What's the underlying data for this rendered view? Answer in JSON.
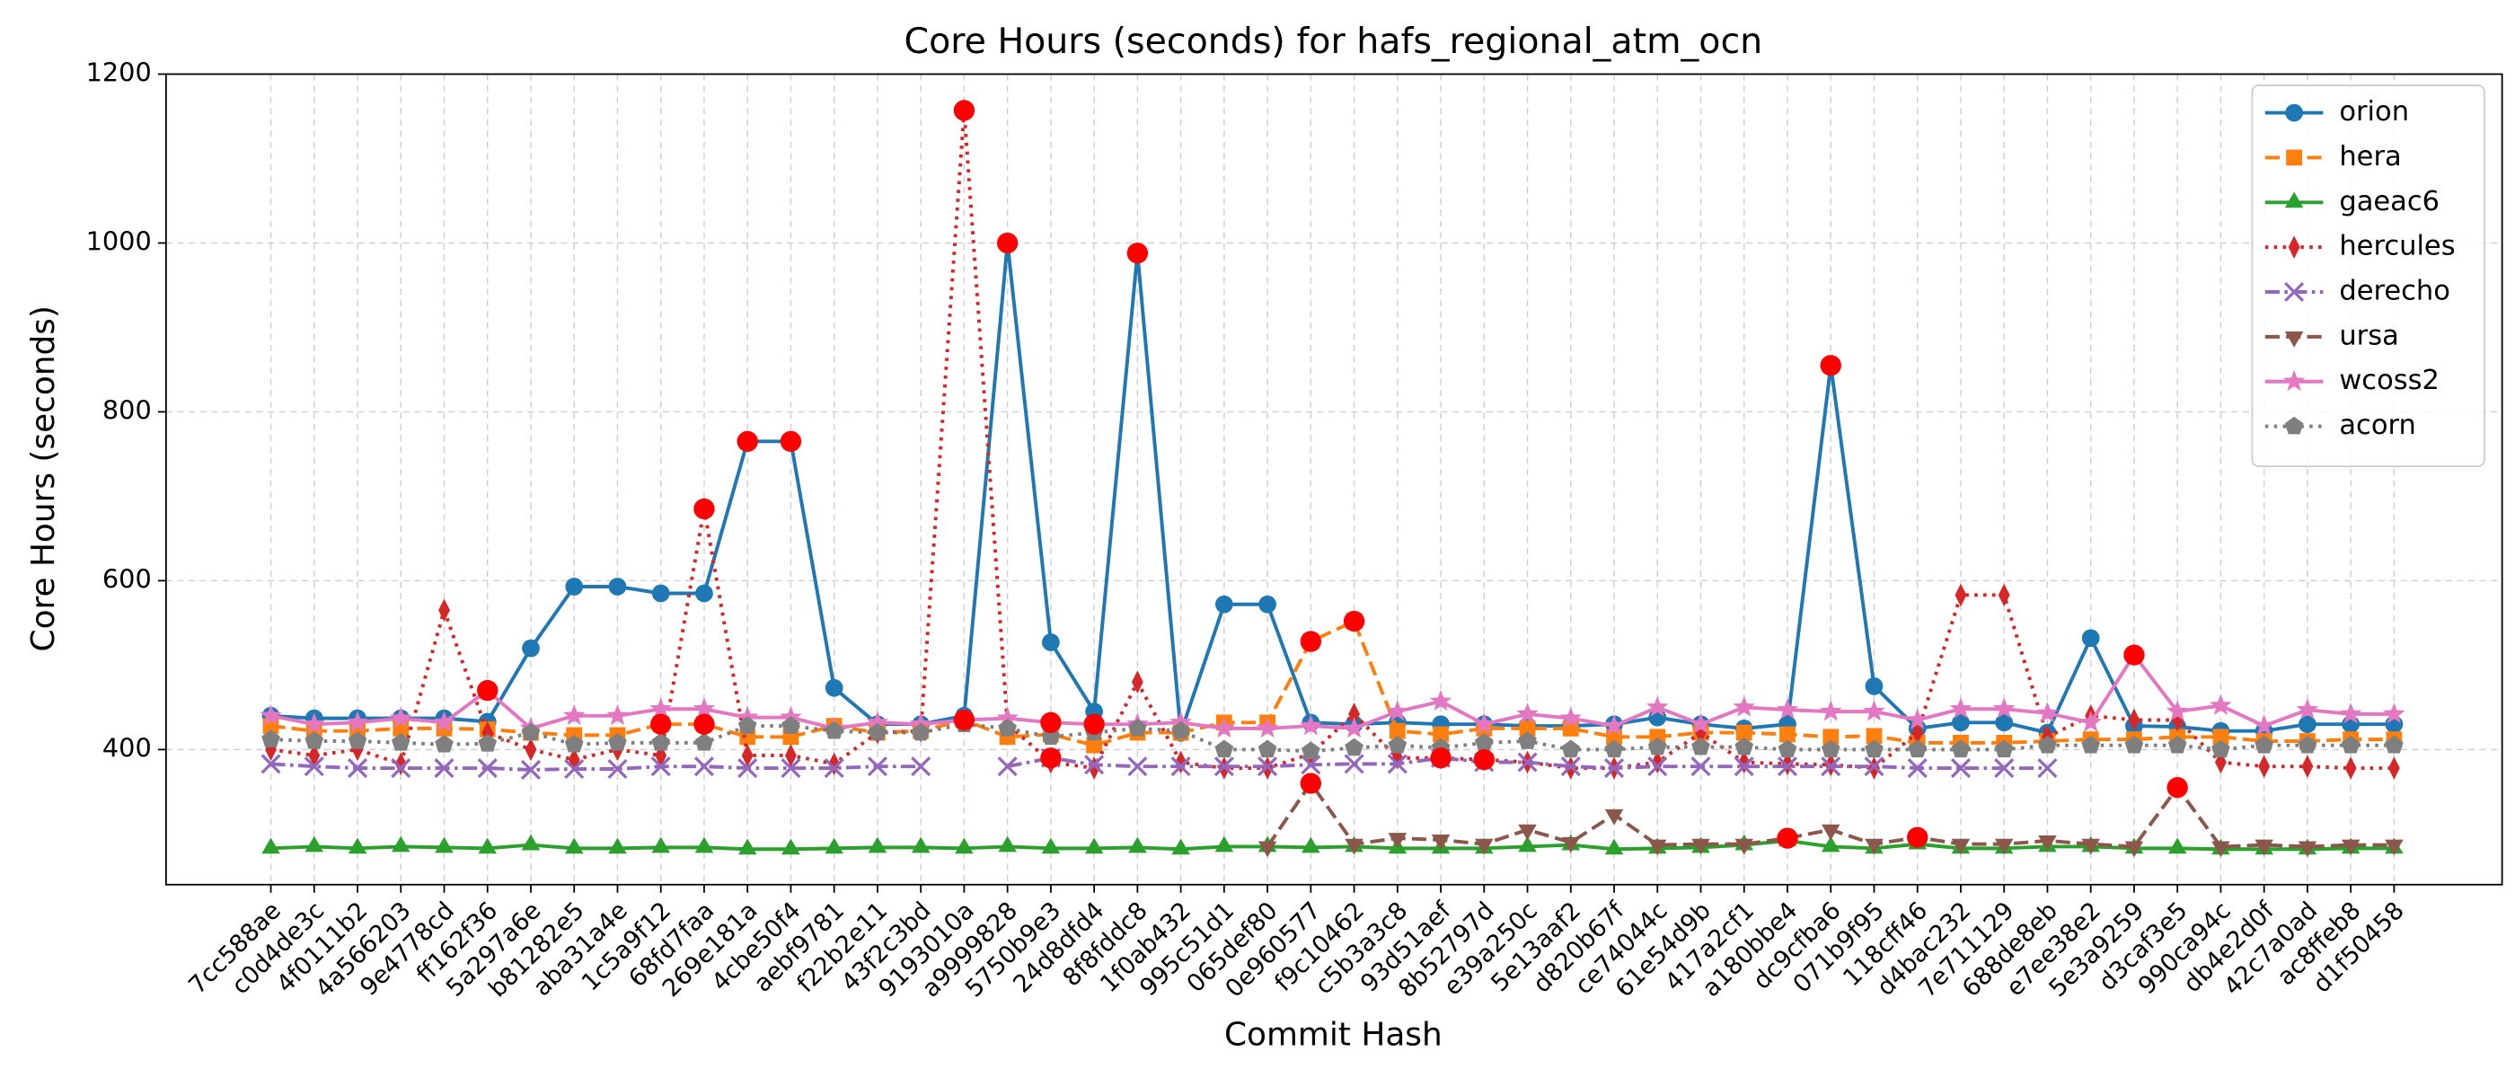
{
  "chart_data": {
    "type": "line",
    "title": "Core Hours (seconds) for hafs_regional_atm_ocn",
    "x_label": "Commit Hash",
    "y_label": "Core Hours (seconds)",
    "categories": [
      "7cc588ae",
      "c0d4de3c",
      "4f0111b2",
      "4a566203",
      "9e4778cd",
      "ff162f36",
      "5a297a6e",
      "b81282e5",
      "aba31a4e",
      "1c5a9f12",
      "68fd7faa",
      "269e181a",
      "4cbe50f4",
      "aebf9781",
      "f22b2e11",
      "43f2c3bd",
      "9193010a",
      "a9999828",
      "5750b9e3",
      "24d8dfd4",
      "8f8fddc8",
      "1f0ab432",
      "995c51d1",
      "065def80",
      "0e960577",
      "f9c10462",
      "c5b3a3c8",
      "93d51aef",
      "8b52797d",
      "e39a250c",
      "5e13aaf2",
      "d820b67f",
      "ce74044c",
      "61e54d9b",
      "417a2cf1",
      "a180bbe4",
      "dc9cfba6",
      "071b9f95",
      "118cff46",
      "d4bac232",
      "7e711129",
      "688de8eb",
      "e7ee38e2",
      "5e3a9259",
      "d3caf3e5",
      "990ca94c",
      "db4e2d0f",
      "42c7a0ad",
      "ac8ffeb8",
      "d1f50458"
    ],
    "ylim": [
      240,
      1200
    ],
    "yticks": [
      400,
      600,
      800,
      1000,
      1200
    ],
    "grid": true,
    "legend": "upper right",
    "outlier_color": "#ff0000",
    "series": [
      {
        "name": "orion",
        "color": "#1f77b4",
        "linestyle": "solid",
        "marker": "circle",
        "values": [
          440,
          437,
          437,
          437,
          437,
          433,
          520,
          593,
          593,
          585,
          585,
          765,
          765,
          473,
          430,
          430,
          440,
          1000,
          527,
          445,
          988,
          420,
          572,
          572,
          432,
          430,
          432,
          430,
          430,
          428,
          428,
          430,
          438,
          430,
          425,
          430,
          855,
          475,
          425,
          432,
          432,
          420,
          532,
          428,
          427,
          422,
          422,
          430,
          430,
          430
        ],
        "outliers": [
          "269e181a",
          "4cbe50f4",
          "a9999828",
          "8f8fddc8",
          "dc9cfba6"
        ]
      },
      {
        "name": "hera",
        "color": "#ff7f0e",
        "linestyle": "dashed",
        "marker": "square",
        "values": [
          428,
          422,
          422,
          425,
          425,
          424,
          420,
          417,
          417,
          430,
          430,
          415,
          415,
          428,
          420,
          422,
          435,
          415,
          418,
          405,
          420,
          420,
          432,
          432,
          528,
          552,
          422,
          418,
          425,
          425,
          425,
          415,
          415,
          420,
          420,
          418,
          415,
          416,
          408,
          408,
          408,
          410,
          412,
          412,
          415,
          415,
          410,
          410,
          412,
          412
        ],
        "outliers": [
          "1c5a9f12",
          "68fd7faa",
          "9193010a",
          "0e960577",
          "f9c10462"
        ]
      },
      {
        "name": "gaeac6",
        "color": "#2ca02c",
        "linestyle": "solid",
        "marker": "triangle-up",
        "values": [
          283,
          285,
          283,
          285,
          284,
          283,
          287,
          283,
          283,
          284,
          284,
          282,
          282,
          283,
          284,
          284,
          283,
          285,
          283,
          283,
          284,
          282,
          285,
          285,
          284,
          285,
          283,
          283,
          283,
          285,
          287,
          282,
          283,
          284,
          287,
          292,
          285,
          283,
          288,
          283,
          283,
          285,
          285,
          283,
          283,
          282,
          282,
          282,
          283,
          283
        ],
        "outliers": []
      },
      {
        "name": "hercules",
        "color": "#d62728",
        "linestyle": "dotted",
        "marker": "thin-diamond",
        "values": [
          400,
          393,
          400,
          383,
          565,
          420,
          400,
          388,
          400,
          393,
          685,
          393,
          393,
          383,
          420,
          422,
          1157,
          430,
          385,
          378,
          480,
          385,
          378,
          378,
          395,
          442,
          390,
          390,
          388,
          385,
          378,
          378,
          385,
          420,
          385,
          383,
          382,
          378,
          420,
          583,
          583,
          415,
          440,
          435,
          435,
          385,
          380,
          380,
          378,
          378
        ],
        "outliers": [
          "68fd7faa",
          "9193010a",
          "8b52797d"
        ]
      },
      {
        "name": "derecho",
        "color": "#9467bd",
        "linestyle": "dashdot",
        "marker": "x",
        "values": [
          383,
          380,
          378,
          378,
          378,
          378,
          376,
          377,
          377,
          380,
          380,
          378,
          378,
          378,
          380,
          380,
          null,
          380,
          390,
          382,
          380,
          380,
          380,
          380,
          382,
          383,
          383,
          390,
          385,
          385,
          380,
          378,
          380,
          380,
          380,
          380,
          380,
          380,
          378,
          378,
          378,
          378,
          null,
          null,
          null,
          null,
          null,
          null,
          null,
          null
        ],
        "outliers": [
          "5750b9e3",
          "93d51aef"
        ]
      },
      {
        "name": "ursa",
        "color": "#8c564b",
        "linestyle": "dashed",
        "marker": "triangle-down",
        "values": [
          null,
          null,
          null,
          null,
          null,
          null,
          null,
          null,
          null,
          null,
          null,
          null,
          null,
          null,
          null,
          null,
          null,
          null,
          null,
          null,
          null,
          null,
          null,
          285,
          360,
          288,
          295,
          293,
          288,
          305,
          290,
          323,
          287,
          288,
          288,
          295,
          305,
          288,
          296,
          288,
          288,
          292,
          288,
          285,
          355,
          285,
          287,
          285,
          287,
          287
        ],
        "outliers": [
          "0e960577",
          "a180bbe4",
          "118cff46",
          "d3caf3e5"
        ]
      },
      {
        "name": "wcoss2",
        "color": "#e377c2",
        "linestyle": "solid",
        "marker": "star",
        "values": [
          440,
          430,
          432,
          437,
          432,
          470,
          425,
          440,
          440,
          448,
          448,
          438,
          438,
          425,
          432,
          430,
          435,
          437,
          432,
          430,
          430,
          432,
          425,
          425,
          428,
          425,
          445,
          457,
          430,
          442,
          437,
          428,
          450,
          430,
          450,
          447,
          445,
          445,
          435,
          448,
          448,
          443,
          432,
          512,
          445,
          452,
          428,
          447,
          442,
          442
        ],
        "outliers": [
          "ff162f36",
          "5750b9e3",
          "24d8dfd4",
          "5e3a9259"
        ]
      },
      {
        "name": "acorn",
        "color": "#7f7f7f",
        "linestyle": "dotted",
        "marker": "pentagon",
        "values": [
          412,
          410,
          410,
          408,
          406,
          407,
          420,
          406,
          408,
          408,
          408,
          428,
          428,
          422,
          420,
          420,
          430,
          425,
          415,
          420,
          425,
          422,
          400,
          400,
          398,
          402,
          405,
          402,
          408,
          410,
          400,
          400,
          403,
          403,
          403,
          400,
          400,
          400,
          400,
          400,
          400,
          405,
          405,
          405,
          405,
          400,
          405,
          405,
          405,
          405
        ],
        "outliers": []
      }
    ]
  }
}
